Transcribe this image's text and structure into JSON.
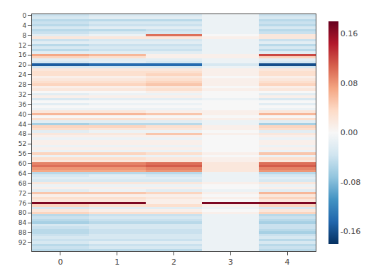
{
  "chart_data": {
    "type": "heatmap",
    "color": "RdBu_r",
    "grid": false,
    "x": [
      0,
      1,
      2,
      3,
      4
    ],
    "y": [
      0,
      1,
      2,
      3,
      4,
      5,
      6,
      7,
      8,
      9,
      10,
      11,
      12,
      13,
      14,
      15,
      16,
      17,
      18,
      19,
      20,
      21,
      22,
      23,
      24,
      25,
      26,
      27,
      28,
      29,
      30,
      31,
      32,
      33,
      34,
      35,
      36,
      37,
      38,
      39,
      40,
      41,
      42,
      43,
      44,
      45,
      46,
      47,
      48,
      49,
      50,
      51,
      52,
      53,
      54,
      55,
      56,
      57,
      58,
      59,
      60,
      61,
      62,
      63,
      64,
      65,
      66,
      67,
      68,
      69,
      70,
      71,
      72,
      73,
      74,
      75,
      76,
      77,
      78,
      79,
      80,
      81,
      82,
      83,
      84,
      85,
      86,
      87,
      88,
      89,
      90,
      91,
      92,
      93,
      94,
      95
    ],
    "xlim": [
      -0.5,
      4.5
    ],
    "xticks": [
      0,
      1,
      2,
      3,
      4
    ],
    "ylim": [
      95.5,
      -0.5
    ],
    "yticks": [
      0,
      4,
      8,
      12,
      16,
      20,
      24,
      28,
      32,
      36,
      40,
      44,
      48,
      52,
      56,
      60,
      64,
      68,
      72,
      76,
      80,
      84,
      88,
      92
    ],
    "zlim": [
      -0.18,
      0.18
    ],
    "zticks": [
      0.16,
      0.08,
      {
        "value": 0,
        "label": "0.00"
      },
      -0.08,
      -0.16
    ],
    "values": [
      [
        -0.04,
        -0.03,
        -0.03,
        -0.01,
        -0.04
      ],
      [
        -0.03,
        -0.02,
        -0.02,
        -0.01,
        -0.03
      ],
      [
        -0.05,
        -0.05,
        -0.05,
        -0.01,
        -0.05
      ],
      [
        -0.04,
        -0.03,
        -0.03,
        -0.01,
        -0.04
      ],
      [
        -0.05,
        -0.04,
        -0.04,
        -0.01,
        -0.05
      ],
      [
        -0.03,
        -0.02,
        -0.02,
        -0.01,
        -0.03
      ],
      [
        -0.05,
        -0.05,
        -0.04,
        -0.01,
        -0.05
      ],
      [
        -0.04,
        -0.03,
        -0.03,
        -0.01,
        -0.04
      ],
      [
        -0.02,
        -0.01,
        0.1,
        0,
        0.02
      ],
      [
        0.02,
        0.02,
        0.02,
        0.01,
        0.02
      ],
      [
        -0.04,
        -0.03,
        -0.03,
        -0.01,
        -0.04
      ],
      [
        -0.02,
        -0.02,
        -0.02,
        -0.01,
        -0.02
      ],
      [
        -0.05,
        -0.04,
        -0.04,
        -0.01,
        -0.05
      ],
      [
        -0.03,
        -0.03,
        -0.03,
        -0.01,
        -0.03
      ],
      [
        -0.05,
        -0.04,
        -0.04,
        -0.01,
        -0.05
      ],
      [
        -0.02,
        -0.02,
        -0.02,
        -0.01,
        -0.02
      ],
      [
        0.07,
        0.06,
        0.01,
        0.01,
        0.12
      ],
      [
        0.04,
        0.03,
        0.01,
        0.01,
        0.04
      ],
      [
        -0.02,
        -0.02,
        -0.02,
        -0.01,
        -0.02
      ],
      [
        -0.03,
        -0.02,
        -0.03,
        -0.01,
        -0.03
      ],
      [
        -0.15,
        -0.14,
        -0.14,
        -0.03,
        -0.16
      ],
      [
        -0.03,
        -0.03,
        -0.03,
        -0.01,
        -0.03
      ],
      [
        0.02,
        0.02,
        0.02,
        0.01,
        0.02
      ],
      [
        0.03,
        0.03,
        0.03,
        0.01,
        0.03
      ],
      [
        0.03,
        0.03,
        0.04,
        0.01,
        0.03
      ],
      [
        0.01,
        0.01,
        0.02,
        0,
        0.01
      ],
      [
        0.02,
        0.02,
        0.03,
        0.01,
        0.02
      ],
      [
        0.03,
        0.03,
        0.04,
        0.01,
        0.03
      ],
      [
        0.04,
        0.04,
        0.05,
        0.01,
        0.04
      ],
      [
        0.01,
        0.01,
        0.02,
        0,
        0.01
      ],
      [
        0.02,
        0.02,
        0.03,
        0.01,
        0.02
      ],
      [
        0,
        0,
        0.01,
        0,
        0
      ],
      [
        -0.02,
        -0.01,
        -0.01,
        0,
        -0.02
      ],
      [
        0.01,
        0.01,
        0.01,
        0,
        0.01
      ],
      [
        -0.03,
        -0.02,
        -0.02,
        -0.01,
        -0.03
      ],
      [
        0,
        0,
        0,
        0,
        0
      ],
      [
        -0.02,
        -0.01,
        -0.01,
        0,
        -0.02
      ],
      [
        0,
        0,
        0,
        0,
        0
      ],
      [
        -0.01,
        -0.01,
        -0.01,
        0,
        -0.01
      ],
      [
        0.02,
        0.02,
        0.01,
        0.01,
        0.02
      ],
      [
        0.06,
        0.06,
        0.05,
        0.01,
        0.06
      ],
      [
        0,
        0,
        0,
        0,
        0
      ],
      [
        0.03,
        0.03,
        0.02,
        0.01,
        0.03
      ],
      [
        -0.02,
        -0.02,
        -0.02,
        -0.01,
        -0.02
      ],
      [
        -0.06,
        -0.05,
        -0.05,
        -0.01,
        -0.06
      ],
      [
        0.04,
        0.04,
        0.03,
        0.01,
        0.04
      ],
      [
        0.03,
        0.02,
        0.02,
        0.01,
        0.03
      ],
      [
        -0.02,
        -0.01,
        -0.01,
        0,
        -0.02
      ],
      [
        0.02,
        0.02,
        0.05,
        0.01,
        0.02
      ],
      [
        0.01,
        0.01,
        0.01,
        0,
        0.01
      ],
      [
        -0.01,
        -0.01,
        -0.01,
        0,
        -0.01
      ],
      [
        0.01,
        0.01,
        0.01,
        0,
        0.01
      ],
      [
        0.01,
        0.01,
        0.01,
        0,
        0.01
      ],
      [
        -0.01,
        -0.01,
        -0.01,
        0,
        -0.01
      ],
      [
        0.01,
        0.01,
        0.01,
        0,
        0.01
      ],
      [
        -0.01,
        -0.01,
        -0.01,
        0,
        -0.01
      ],
      [
        0.04,
        0.04,
        0.03,
        0.01,
        0.05
      ],
      [
        -0.01,
        -0.01,
        -0.01,
        0,
        -0.01
      ],
      [
        0.03,
        0.03,
        0.02,
        0.01,
        0.03
      ],
      [
        0.02,
        0.02,
        0.02,
        0.01,
        0.02
      ],
      [
        0.09,
        0.09,
        0.1,
        0.02,
        0.1
      ],
      [
        0.1,
        0.1,
        0.11,
        0.02,
        0.11
      ],
      [
        0.08,
        0.08,
        0.09,
        0.02,
        0.09
      ],
      [
        0.07,
        0.07,
        0.08,
        0.02,
        0.08
      ],
      [
        -0.05,
        -0.05,
        -0.05,
        -0.01,
        -0.05
      ],
      [
        -0.03,
        -0.02,
        -0.03,
        -0.01,
        -0.03
      ],
      [
        -0.02,
        -0.02,
        -0.02,
        -0.01,
        -0.02
      ],
      [
        -0.03,
        -0.03,
        -0.03,
        -0.01,
        -0.03
      ],
      [
        0.02,
        0.02,
        0.02,
        0.01,
        0.02
      ],
      [
        -0.01,
        -0.01,
        -0.01,
        0,
        -0.01
      ],
      [
        0.01,
        0.01,
        0.01,
        0,
        0.01
      ],
      [
        -0.02,
        -0.01,
        -0.02,
        -0.01,
        -0.02
      ],
      [
        0.05,
        0.05,
        0.04,
        0.01,
        0.06
      ],
      [
        0.01,
        0.01,
        0.01,
        0,
        0.02
      ],
      [
        0.03,
        0.03,
        0.02,
        0.01,
        0.04
      ],
      [
        0.02,
        0.02,
        0.01,
        0,
        0.02
      ],
      [
        0.17,
        0.17,
        0.01,
        0.17,
        0.17
      ],
      [
        0.04,
        0.03,
        0.03,
        0.01,
        0.04
      ],
      [
        -0.03,
        -0.02,
        -0.02,
        -0.01,
        -0.03
      ],
      [
        0.02,
        0.01,
        0.01,
        0,
        0.02
      ],
      [
        0.04,
        0.03,
        0.03,
        0.01,
        0.04
      ],
      [
        -0.05,
        -0.04,
        -0.04,
        -0.01,
        -0.05
      ],
      [
        -0.04,
        -0.03,
        -0.03,
        -0.01,
        -0.04
      ],
      [
        -0.05,
        -0.04,
        -0.04,
        -0.01,
        -0.05
      ],
      [
        -0.06,
        -0.05,
        -0.05,
        -0.01,
        -0.06
      ],
      [
        -0.03,
        -0.03,
        -0.03,
        -0.01,
        -0.04
      ],
      [
        -0.04,
        -0.03,
        -0.03,
        -0.01,
        -0.04
      ],
      [
        -0.05,
        -0.04,
        -0.04,
        -0.01,
        -0.05
      ],
      [
        -0.05,
        -0.04,
        -0.04,
        -0.01,
        -0.06
      ],
      [
        -0.04,
        -0.03,
        -0.03,
        -0.01,
        -0.04
      ],
      [
        -0.03,
        -0.03,
        -0.03,
        -0.01,
        -0.03
      ],
      [
        -0.04,
        -0.04,
        -0.04,
        -0.01,
        -0.05
      ],
      [
        -0.03,
        -0.02,
        -0.02,
        -0.01,
        -0.03
      ],
      [
        -0.05,
        -0.04,
        -0.04,
        -0.01,
        -0.05
      ],
      [
        -0.04,
        -0.03,
        -0.03,
        -0.01,
        -0.04
      ],
      [
        -0.05,
        -0.05,
        -0.05,
        -0.01,
        -0.05
      ]
    ]
  }
}
